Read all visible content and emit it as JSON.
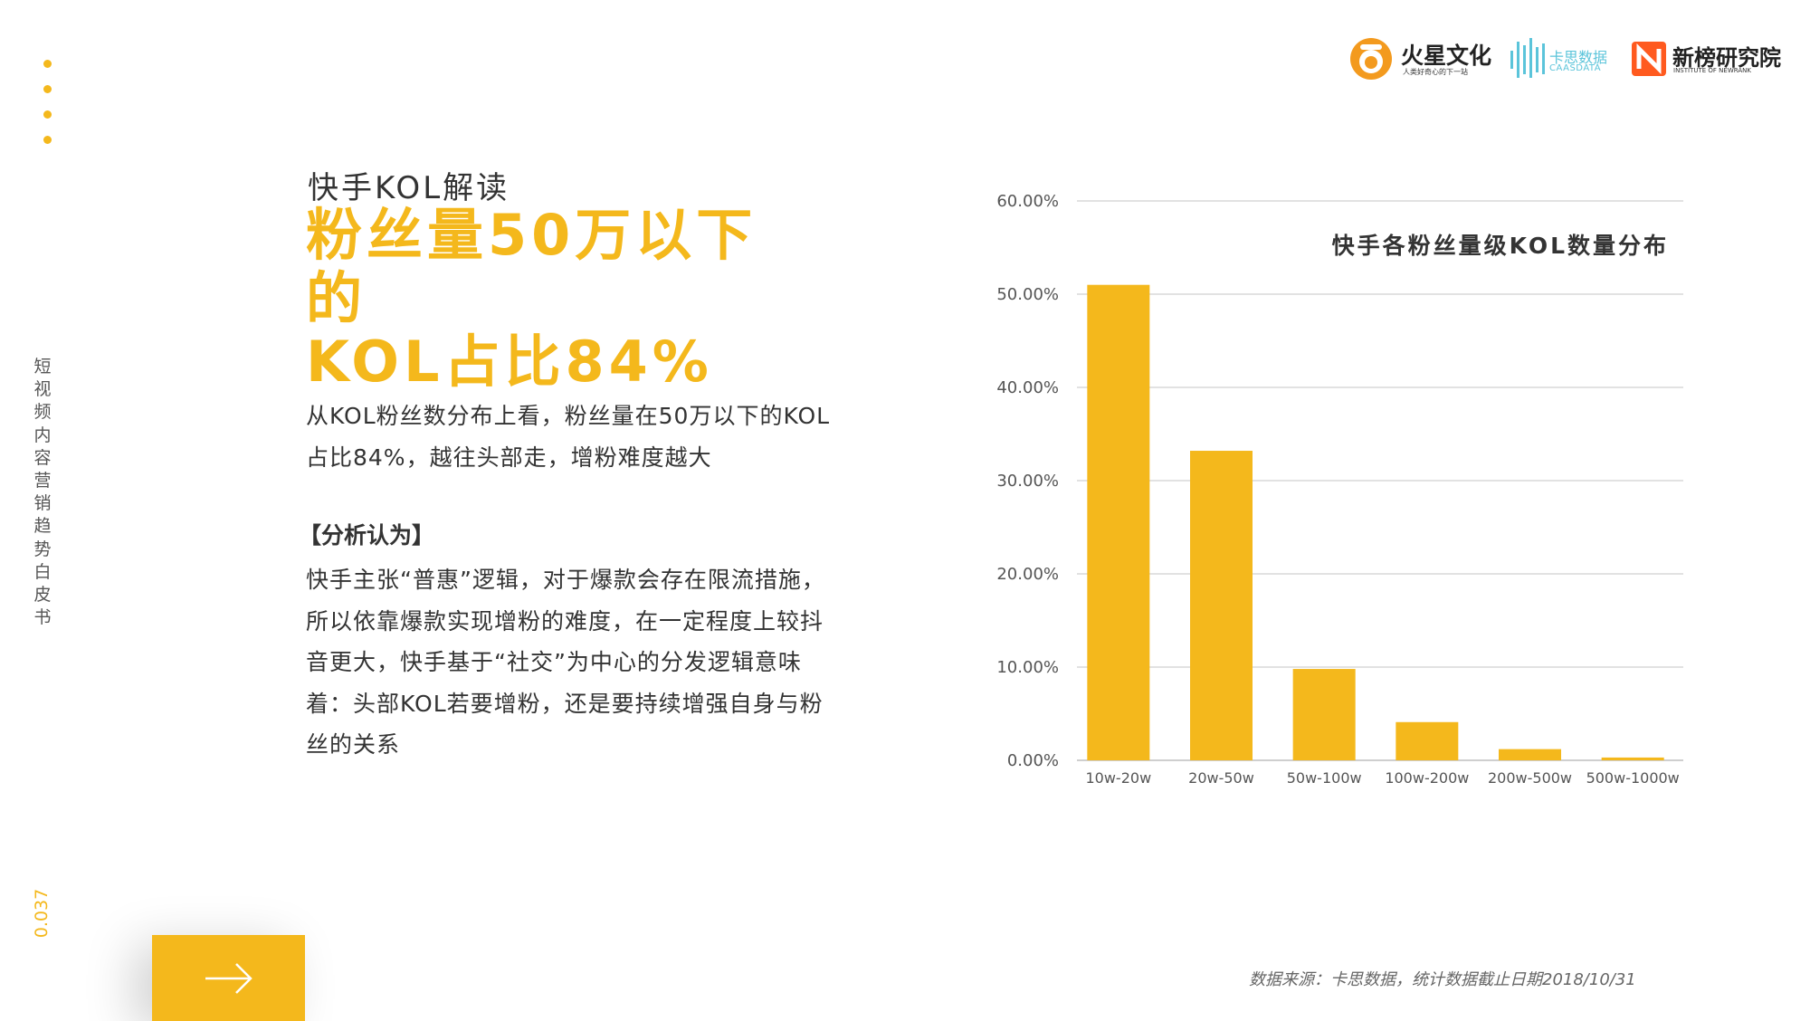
{
  "sidebar": {
    "vertical_title": "短视频内容营销趋势白皮书",
    "page_number": "0.037"
  },
  "logos": {
    "huoxing_name": "火星文化",
    "huoxing_slogan": "人类好奇心的下一站",
    "kasi_name": "卡思数据",
    "kasi_sub": "CAASDATA",
    "xinbang_name": "新榜研究院",
    "xinbang_sub": "INSTITUTE OF NEWRANK"
  },
  "main": {
    "subtitle": "快手KOL解读",
    "headline_line1": "粉丝量50万以下的",
    "headline_line2": "KOL占比84%",
    "paragraph1": "从KOL粉丝数分布上看，粉丝量在50万以下的KOL占比84%，越往头部走，增粉难度越大",
    "analysis_heading": "【分析认为】",
    "paragraph2": "快手主张“普惠”逻辑，对于爆款会存在限流措施，所以依靠爆款实现增粉的难度，在一定程度上较抖音更大，快手基于“社交”为中心的分发逻辑意味着：头部KOL若要增粉，还是要持续增强自身与粉丝的关系"
  },
  "source_note": "数据来源：卡思数据，统计数据截止日期2018/10/31",
  "colors": {
    "accent": "#F4B81C",
    "text": "#333333",
    "grid": "#D9D9D9",
    "kasi": "#5BC4DA",
    "xinbang": "#FF5A1F"
  },
  "chart_data": {
    "type": "bar",
    "title": "快手各粉丝量级KOL数量分布",
    "categories": [
      "10w-20w",
      "20w-50w",
      "50w-100w",
      "100w-200w",
      "200w-500w",
      "500w-1000w"
    ],
    "values": [
      51.0,
      33.2,
      9.8,
      4.1,
      1.2,
      0.3
    ],
    "ylim": [
      0,
      60
    ],
    "yticks": [
      "0.00%",
      "10.00%",
      "20.00%",
      "30.00%",
      "40.00%",
      "50.00%",
      "60.00%"
    ],
    "grid": true
  }
}
